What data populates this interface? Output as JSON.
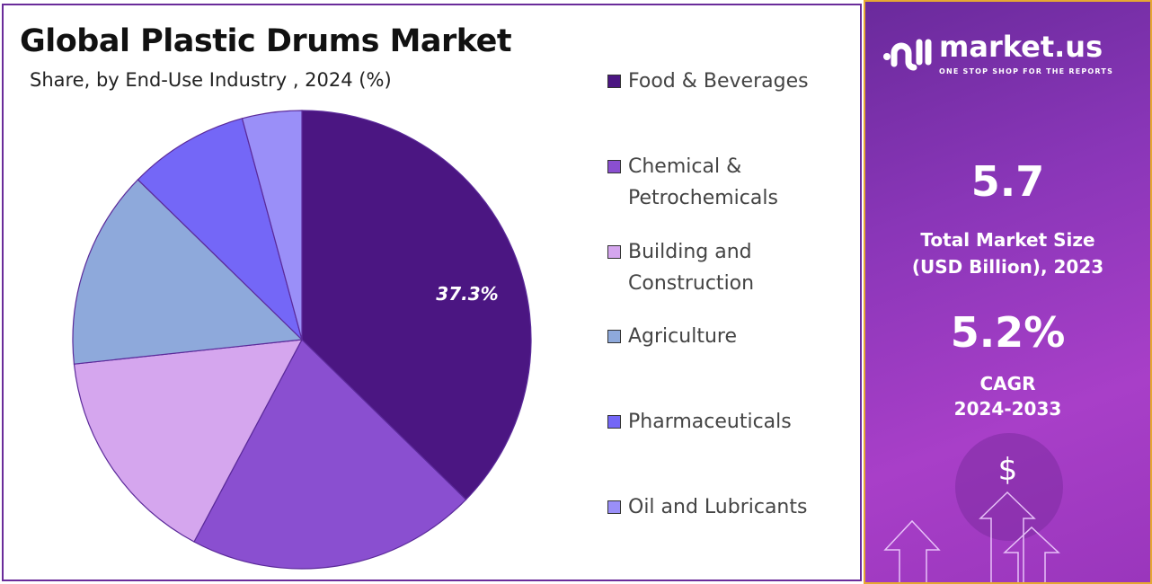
{
  "chart_data": {
    "type": "pie",
    "title": "Global Plastic Drums Market",
    "subtitle": "Share, by End-Use Industry , 2024 (%)",
    "slices": [
      {
        "label": "Food & Beverages",
        "value": 37.3,
        "color": "#4b1682",
        "data_label": "37.3%"
      },
      {
        "label": "Chemical & Petrochemicals",
        "value": 20.5,
        "color": "#8a4fd0"
      },
      {
        "label": "Building and Construction",
        "value": 15.5,
        "color": "#d5a6ee"
      },
      {
        "label": "Agriculture",
        "value": 14.0,
        "color": "#8ea9db"
      },
      {
        "label": "Pharmaceuticals",
        "value": 8.5,
        "color": "#7467f7"
      },
      {
        "label": "Oil and Lubricants",
        "value": 4.2,
        "color": "#9a8ff8"
      }
    ],
    "legend_placement": "right"
  },
  "legend": {
    "lines": [
      [
        "Food & Beverages"
      ],
      [
        "Chemical &",
        "Petrochemicals"
      ],
      [
        "Building and",
        "Construction"
      ],
      [
        "Agriculture"
      ],
      [
        "Pharmaceuticals"
      ],
      [
        "Oil and Lubricants"
      ]
    ]
  },
  "panel": {
    "logo": "market.us",
    "tagline": "ONE STOP SHOP FOR THE REPORTS",
    "market_size": "5.7",
    "market_size_label_1": "Total Market Size",
    "market_size_label_2": "(USD Billion), 2023",
    "cagr": "5.2%",
    "cagr_label_1": "CAGR",
    "cagr_label_2": "2024-2033",
    "dollar": "$"
  }
}
